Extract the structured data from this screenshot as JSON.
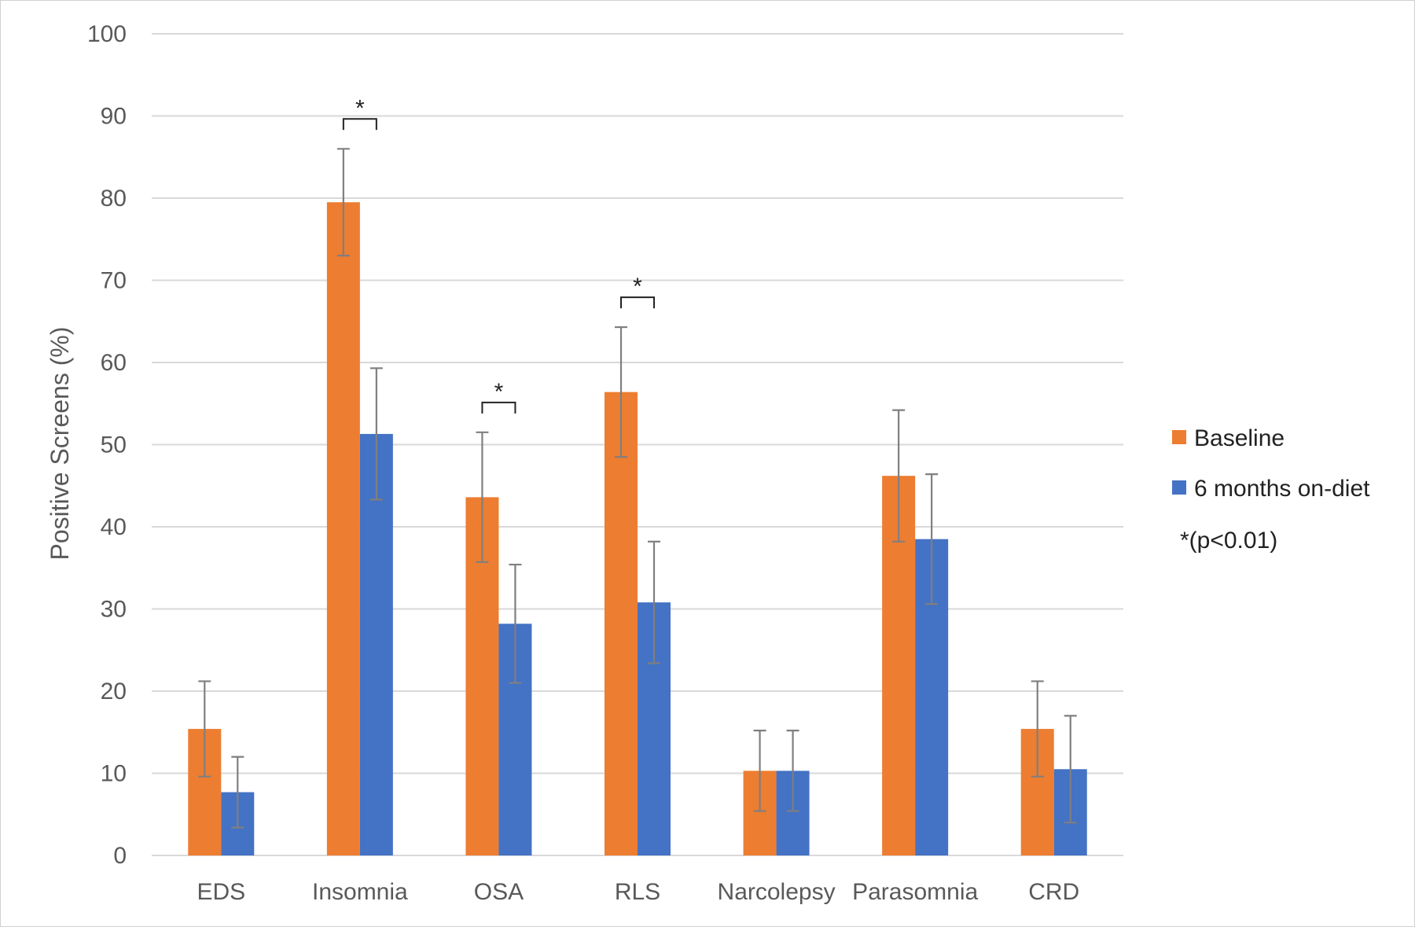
{
  "chart_data": {
    "type": "bar",
    "ylabel": "Positive Screens (%)",
    "xlabel": "",
    "ylim": [
      0,
      100
    ],
    "yticks": [
      0,
      10,
      20,
      30,
      40,
      50,
      60,
      70,
      80,
      90,
      100
    ],
    "grid": true,
    "legend_position": "right",
    "categories": [
      "EDS",
      "Insomnia",
      "OSA",
      "RLS",
      "Narcolepsy",
      "Parasomnia",
      "CRD"
    ],
    "series": [
      {
        "name": "Baseline",
        "color": "#ED7D31",
        "values": [
          15.4,
          79.5,
          43.6,
          56.4,
          10.3,
          46.2,
          15.4
        ],
        "error_low": [
          9.6,
          73.0,
          35.7,
          48.5,
          5.4,
          38.2,
          9.6
        ],
        "error_high": [
          21.2,
          86.0,
          51.5,
          64.3,
          15.2,
          54.2,
          21.2
        ]
      },
      {
        "name": "6 months on-diet",
        "color": "#4472C4",
        "values": [
          7.7,
          51.3,
          28.2,
          30.8,
          10.3,
          38.5,
          10.5
        ],
        "error_low": [
          3.4,
          43.3,
          21.0,
          23.4,
          5.4,
          30.6,
          4.0
        ],
        "error_high": [
          12.0,
          59.3,
          35.4,
          38.2,
          15.2,
          46.4,
          17.0
        ]
      }
    ],
    "significance": [
      {
        "category_index": 1,
        "label": "*"
      },
      {
        "category_index": 2,
        "label": "*"
      },
      {
        "category_index": 3,
        "label": "*"
      }
    ],
    "legend_note": "*(p<0.01)"
  }
}
